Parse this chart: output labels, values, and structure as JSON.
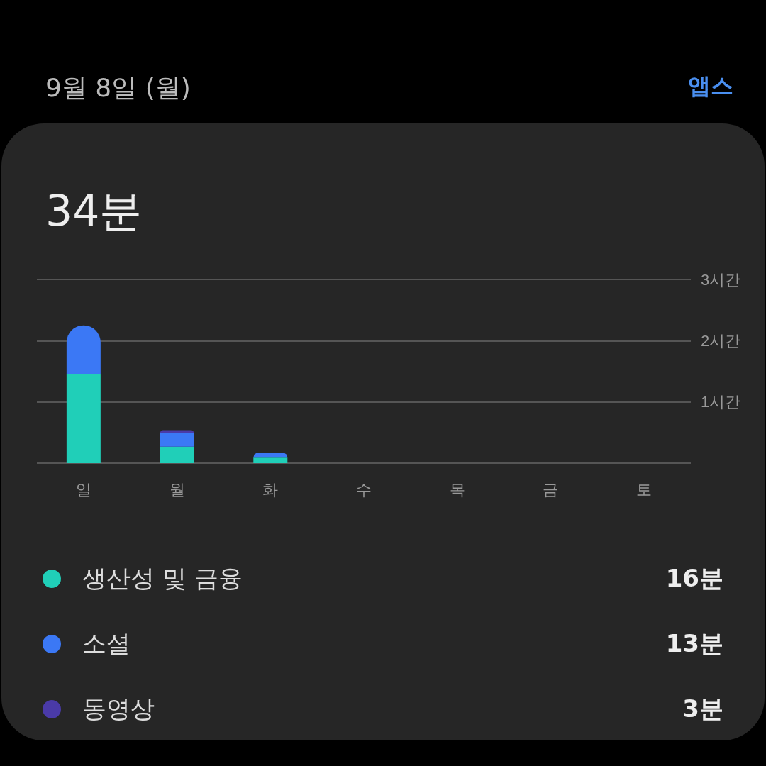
{
  "chart_data": {
    "type": "bar",
    "title": "34분",
    "subtitle": "9월 8일 (월)",
    "categories": [
      "일",
      "월",
      "화",
      "수",
      "목",
      "금",
      "토"
    ],
    "series": [
      {
        "name": "생산성 및 금융",
        "color": "#20cfb8",
        "values": [
          1.45,
          0.27,
          0.09,
          null,
          null,
          null,
          null
        ]
      },
      {
        "name": "소셜",
        "color": "#3b78f5",
        "values": [
          0.8,
          0.22,
          0.08,
          null,
          null,
          null,
          null
        ]
      },
      {
        "name": "동영상",
        "color": "#4a3aa8",
        "values": [
          null,
          0.05,
          null,
          null,
          null,
          null,
          null
        ]
      }
    ],
    "stacked": true,
    "ylim": [
      0,
      3
    ],
    "yticks": [
      {
        "value": 0,
        "label": null
      },
      {
        "value": 1,
        "label": "1시간"
      },
      {
        "value": 2,
        "label": "2시간"
      },
      {
        "value": 3,
        "label": "3시간"
      }
    ],
    "grid": "y",
    "legend": "bottom",
    "annotations": [
      "앱스",
      "16분",
      "13분",
      "3분"
    ]
  }
}
